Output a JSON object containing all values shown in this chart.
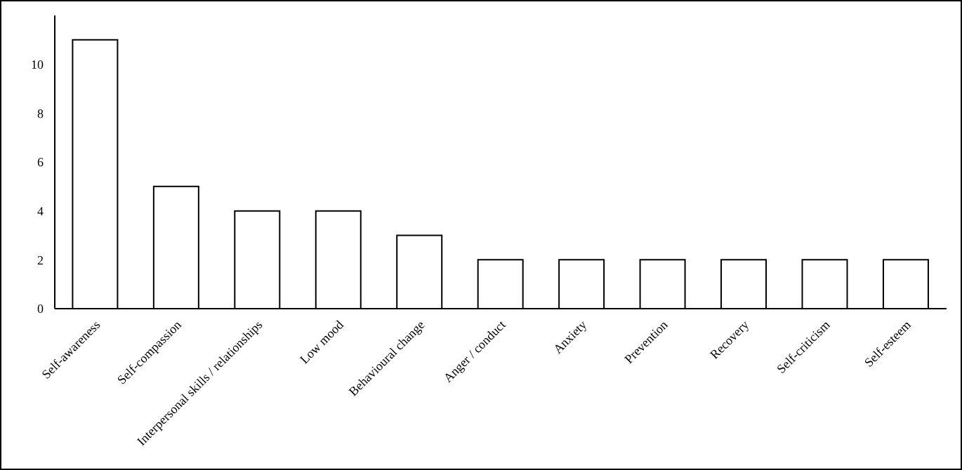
{
  "chart_data": {
    "type": "bar",
    "categories": [
      "Self-awareness",
      "Self-compassion",
      "Interpersonal skills / relationships",
      "Low mood",
      "Behavioural change",
      "Anger / conduct",
      "Anxiety",
      "Prevention",
      "Recovery",
      "Self-criticism",
      "Self-esteem"
    ],
    "values": [
      11,
      5,
      4,
      4,
      3,
      2,
      2,
      2,
      2,
      2,
      2
    ],
    "color": "#ffffff",
    "ylim": [
      0,
      12
    ],
    "yticks": [
      0,
      2,
      4,
      6,
      8,
      10
    ],
    "grid": false
  }
}
